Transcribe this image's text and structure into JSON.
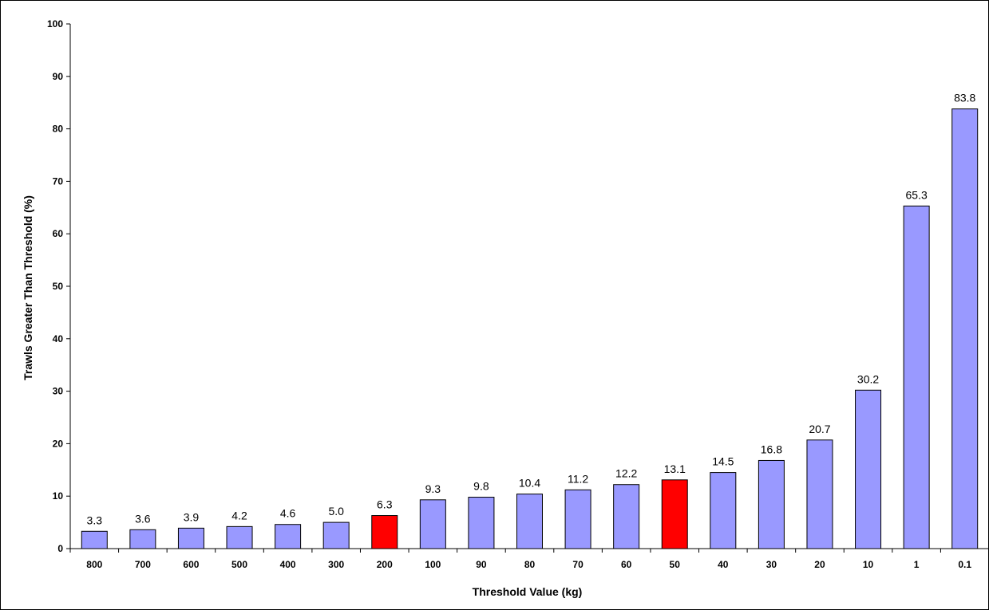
{
  "chart_data": {
    "type": "bar",
    "title": "",
    "xlabel": "Threshold Value (kg)",
    "ylabel": "Trawls Greater Than Threshold (%)",
    "ylim": [
      0,
      100
    ],
    "yticks": [
      0,
      10,
      20,
      30,
      40,
      50,
      60,
      70,
      80,
      90,
      100
    ],
    "categories": [
      "800",
      "700",
      "600",
      "500",
      "400",
      "300",
      "200",
      "100",
      "90",
      "80",
      "70",
      "60",
      "50",
      "40",
      "30",
      "20",
      "10",
      "1",
      "0.1"
    ],
    "values": [
      3.3,
      3.6,
      3.9,
      4.2,
      4.6,
      5.0,
      6.3,
      9.3,
      9.8,
      10.4,
      11.2,
      12.2,
      13.1,
      14.5,
      16.8,
      20.7,
      30.2,
      65.3,
      83.8
    ],
    "value_labels": [
      "3.3",
      "3.6",
      "3.9",
      "4.2",
      "4.6",
      "5.0",
      "6.3",
      "9.3",
      "9.8",
      "10.4",
      "11.2",
      "12.2",
      "13.1",
      "14.5",
      "16.8",
      "20.7",
      "30.2",
      "65.3",
      "83.8"
    ],
    "highlighted_categories": [
      "200",
      "50"
    ],
    "grid": false,
    "legend": "none",
    "colors": {
      "bar": "#9999ff",
      "highlight": "#ff0000",
      "bar_stroke": "#000000",
      "axis": "#000000"
    }
  }
}
